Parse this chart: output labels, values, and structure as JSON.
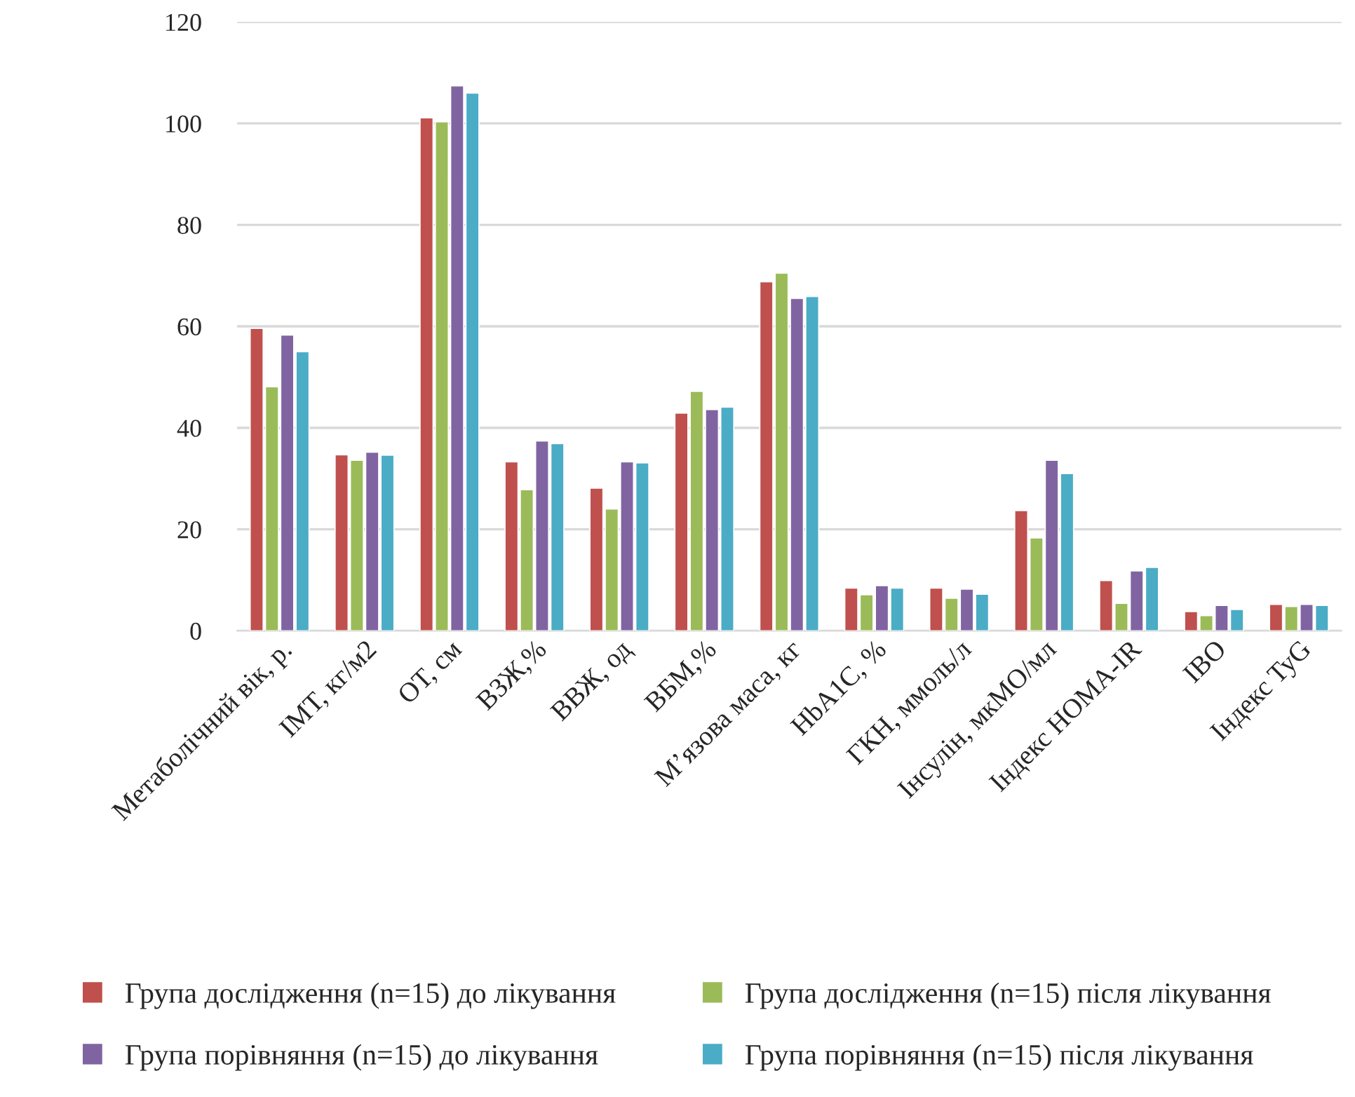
{
  "chart_data": {
    "type": "bar",
    "categories": [
      "Метаболічний вік, р.",
      "ІМТ, кг/м2",
      "ОТ, см",
      "ВЗЖ,%",
      "ВВЖ, од",
      "ВБМ,%",
      "М’язова маса, кг",
      "HbA1C, %",
      "ГКН, ммоль/л",
      "Інсулін, мкМО/мл",
      "Індекс HOMA-IR",
      "ІВО",
      "Індекс TyG"
    ],
    "series": [
      {
        "name": "Група дослідження (n=15) до лікування",
        "color": "#c0504d",
        "values": [
          59.6,
          34.7,
          101.1,
          33.3,
          28.1,
          42.9,
          68.8,
          8.4,
          8.4,
          23.7,
          9.9,
          3.8,
          5.2
        ]
      },
      {
        "name": "Група дослідження (n=15) після лікування",
        "color": "#9bbb59",
        "values": [
          48.1,
          33.6,
          100.3,
          27.8,
          24.0,
          47.2,
          70.5,
          7.1,
          6.4,
          18.3,
          5.4,
          3.0,
          4.8
        ]
      },
      {
        "name": "Група порівняння (n=15) до лікування",
        "color": "#8064a2",
        "values": [
          58.3,
          35.2,
          107.4,
          37.4,
          33.3,
          43.6,
          65.5,
          8.9,
          8.2,
          33.6,
          11.8,
          5.0,
          5.2
        ]
      },
      {
        "name": "Група порівняння (n=15) після лікування",
        "color": "#4bacc6",
        "values": [
          55.0,
          34.6,
          106.0,
          36.9,
          33.1,
          44.1,
          65.9,
          8.4,
          7.2,
          31.0,
          12.5,
          4.2,
          5.0
        ]
      }
    ],
    "ylim": [
      0,
      120
    ],
    "yticks": [
      0,
      20,
      40,
      60,
      80,
      100,
      120
    ],
    "grid": "y",
    "legend": "bottom"
  }
}
